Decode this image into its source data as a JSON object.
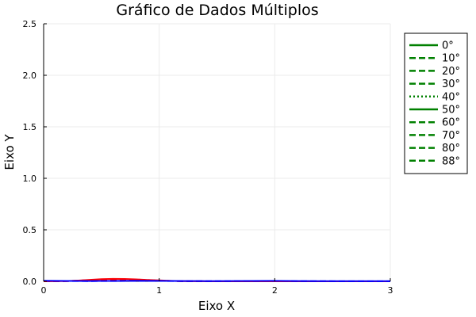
{
  "chart_data": {
    "type": "line",
    "title": "Gráfico de Dados Múltiplos",
    "xlabel": "Eixo X",
    "ylabel": "Eixo Y",
    "xlim": [
      0,
      3
    ],
    "ylim": [
      0,
      2.5
    ],
    "xticks": [
      0,
      1,
      2,
      3
    ],
    "xtick_labels": [
      "0",
      "1",
      "2",
      "3"
    ],
    "yticks": [
      0,
      0.5,
      1.0,
      1.5,
      2.0,
      2.5
    ],
    "ytick_labels": [
      "0.0",
      "0.5",
      "1.0",
      "1.5",
      "2.0",
      "2.5"
    ],
    "grid": true,
    "legend_position": "top-right outside",
    "legend_entries": [
      {
        "label": "0°",
        "color": "#008000",
        "dash": "solid"
      },
      {
        "label": "10°",
        "color": "#008000",
        "dash": "dash"
      },
      {
        "label": "20°",
        "color": "#008000",
        "dash": "dash"
      },
      {
        "label": "30°",
        "color": "#008000",
        "dash": "dash"
      },
      {
        "label": "40°",
        "color": "#008000",
        "dash": "dot"
      },
      {
        "label": "50°",
        "color": "#008000",
        "dash": "solid"
      },
      {
        "label": "60°",
        "color": "#008000",
        "dash": "dash"
      },
      {
        "label": "70°",
        "color": "#008000",
        "dash": "dash"
      },
      {
        "label": "80°",
        "color": "#008000",
        "dash": "dash"
      },
      {
        "label": "88°",
        "color": "#008000",
        "dash": "dash"
      }
    ],
    "series": [
      {
        "color": "#ff0000",
        "dash": "solid",
        "x": [
          0,
          0.1,
          0.2,
          0.3,
          0.4,
          0.5,
          0.6,
          0.7,
          0.8,
          0.9,
          1.0,
          1.1,
          1.2,
          1.3,
          1.5,
          2.0,
          3.0
        ],
        "y": [
          0,
          0.001,
          0.003,
          0.008,
          0.015,
          0.021,
          0.024,
          0.023,
          0.019,
          0.014,
          0.009,
          0.005,
          0.002,
          0.001,
          0,
          0,
          0
        ]
      },
      {
        "color": "#ff0000",
        "dash": "dash",
        "x": [
          0,
          0.1,
          0.2,
          0.3,
          0.4,
          0.5,
          0.6,
          0.7,
          0.8,
          0.9,
          1.0,
          1.1,
          1.2,
          1.3,
          1.5,
          2.0,
          3.0
        ],
        "y": [
          0,
          0.001,
          0.003,
          0.007,
          0.012,
          0.017,
          0.02,
          0.02,
          0.017,
          0.013,
          0.008,
          0.004,
          0.002,
          0.001,
          0,
          0,
          0
        ]
      },
      {
        "color": "#ff0000",
        "dash": "dash",
        "x": [
          0,
          0.1,
          0.2,
          0.3,
          0.4,
          0.5,
          0.6,
          0.7,
          0.8,
          0.9,
          1.0,
          1.1,
          1.2,
          1.3,
          1.5,
          2.0,
          3.0
        ],
        "y": [
          0,
          0.001,
          0.002,
          0.005,
          0.009,
          0.013,
          0.016,
          0.016,
          0.014,
          0.011,
          0.007,
          0.004,
          0.002,
          0.001,
          0,
          0,
          0
        ]
      },
      {
        "color": "#0000ff",
        "dash": "solid",
        "x": [
          0,
          0.2,
          0.4,
          0.6,
          0.8,
          1.0,
          1.2,
          1.4,
          1.6,
          1.8,
          2.0,
          2.2,
          2.4,
          2.6,
          2.8,
          3.0
        ],
        "y": [
          0.006,
          0.004,
          0.003,
          0.004,
          0.006,
          0.005,
          0.003,
          0.002,
          0.003,
          0.004,
          0.005,
          0.003,
          0.002,
          0.002,
          0.002,
          0.002
        ]
      },
      {
        "color": "#0000ff",
        "dash": "dash",
        "x": [
          0,
          0.2,
          0.4,
          0.6,
          0.8,
          1.0,
          1.2,
          1.4,
          1.6,
          1.8,
          2.0,
          2.2,
          2.4,
          2.6,
          2.8,
          3.0
        ],
        "y": [
          0.004,
          0.003,
          0.002,
          0.003,
          0.004,
          0.004,
          0.002,
          0.002,
          0.002,
          0.003,
          0.004,
          0.002,
          0.002,
          0.001,
          0.001,
          0.001
        ]
      }
    ]
  }
}
